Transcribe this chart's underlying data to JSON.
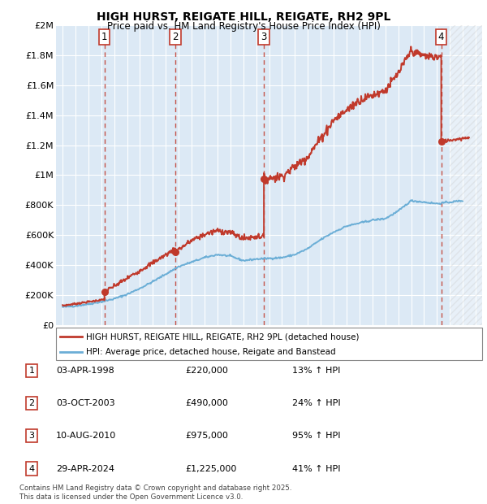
{
  "title": "HIGH HURST, REIGATE HILL, REIGATE, RH2 9PL",
  "subtitle": "Price paid vs. HM Land Registry's House Price Index (HPI)",
  "ylim": [
    0,
    2000000
  ],
  "xlim": [
    1994.5,
    2027.5
  ],
  "yticks": [
    0,
    200000,
    400000,
    600000,
    800000,
    1000000,
    1200000,
    1400000,
    1600000,
    1800000,
    2000000
  ],
  "ytick_labels": [
    "£0",
    "£200K",
    "£400K",
    "£600K",
    "£800K",
    "£1M",
    "£1.2M",
    "£1.4M",
    "£1.6M",
    "£1.8M",
    "£2M"
  ],
  "xticks": [
    1995,
    1996,
    1997,
    1998,
    1999,
    2000,
    2001,
    2002,
    2003,
    2004,
    2005,
    2006,
    2007,
    2008,
    2009,
    2010,
    2011,
    2012,
    2013,
    2014,
    2015,
    2016,
    2017,
    2018,
    2019,
    2020,
    2021,
    2022,
    2023,
    2024,
    2025,
    2026,
    2027
  ],
  "background_color": "#ffffff",
  "plot_bg_color": "#dce9f5",
  "grid_color": "#ffffff",
  "hpi_color": "#6baed6",
  "price_color": "#c0392b",
  "sale_dates": [
    1998.25,
    2003.75,
    2010.6,
    2024.33
  ],
  "sale_prices": [
    220000,
    490000,
    975000,
    1225000
  ],
  "sale_labels": [
    "1",
    "2",
    "3",
    "4"
  ],
  "vline_color": "#c0392b",
  "future_start": 2025.0,
  "legend_entries": [
    "HIGH HURST, REIGATE HILL, REIGATE, RH2 9PL (detached house)",
    "HPI: Average price, detached house, Reigate and Banstead"
  ],
  "table_rows": [
    {
      "num": "1",
      "date": "03-APR-1998",
      "price": "£220,000",
      "change": "13% ↑ HPI"
    },
    {
      "num": "2",
      "date": "03-OCT-2003",
      "price": "£490,000",
      "change": "24% ↑ HPI"
    },
    {
      "num": "3",
      "date": "10-AUG-2010",
      "price": "£975,000",
      "change": "95% ↑ HPI"
    },
    {
      "num": "4",
      "date": "29-APR-2024",
      "price": "£1,225,000",
      "change": "41% ↑ HPI"
    }
  ],
  "footnote1": "Contains HM Land Registry data © Crown copyright and database right 2025.",
  "footnote2": "This data is licensed under the Open Government Licence v3.0."
}
